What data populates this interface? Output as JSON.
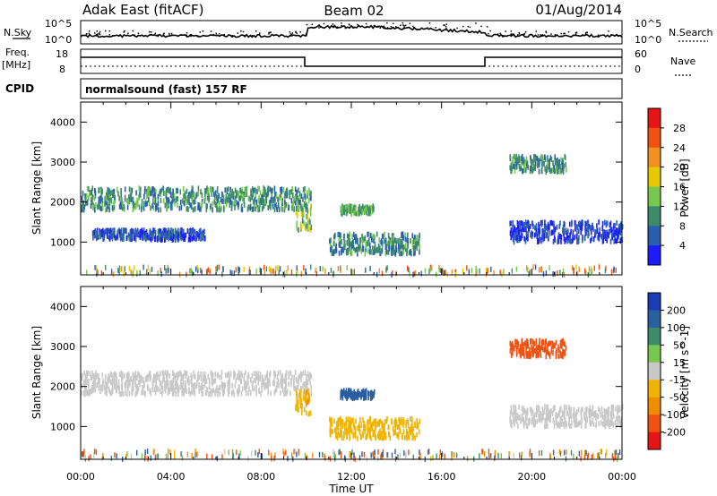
{
  "header": {
    "station": "Adak East (fitACF)",
    "beam": "Beam 02",
    "date": "01/Aug/2014"
  },
  "summary_panels": {
    "nsky": {
      "label": "N.Sky",
      "ticks": [
        "10^5",
        "10^0"
      ]
    },
    "nsearch": {
      "label": "N.Search",
      "ticks": [
        "10^5",
        "10^0"
      ]
    },
    "freq": {
      "label_line1": "Freq.",
      "label_line2": "[MHz]",
      "ticks": [
        "18",
        "8"
      ]
    },
    "nave": {
      "label": "Nave",
      "ticks": [
        "60",
        "0"
      ]
    },
    "cpid": {
      "label": "CPID",
      "text": "normalsound (fast) 157 RF"
    }
  },
  "chart_data": [
    {
      "type": "heatmap",
      "title": "",
      "panel": "power",
      "xlabel": "",
      "ylabel": "Slant Range [km]",
      "colorbar_label": "Power [dB]",
      "x_range": [
        0,
        24
      ],
      "y_range": [
        180,
        4500
      ],
      "x_ticks": [
        "00:00",
        "04:00",
        "08:00",
        "12:00",
        "16:00",
        "20:00",
        "00:00"
      ],
      "y_ticks": [
        "1000",
        "2000",
        "3000",
        "4000"
      ],
      "colorbar_ticks": [
        "4",
        "8",
        "12",
        "16",
        "20",
        "24",
        "28"
      ],
      "colorbar_colors": [
        "#1c1cff",
        "#2a5fb0",
        "#3c8a6a",
        "#78c850",
        "#e6c800",
        "#f09020",
        "#f05010",
        "#e61414"
      ],
      "features": [
        {
          "t_start": 0.0,
          "t_end": 10.2,
          "range_km": [
            1800,
            2350
          ],
          "power_db": 10
        },
        {
          "t_start": 9.5,
          "t_end": 10.2,
          "range_km": [
            1300,
            1900
          ],
          "power_db": 14
        },
        {
          "t_start": 0.5,
          "t_end": 5.5,
          "range_km": [
            1050,
            1300
          ],
          "power_db": 5
        },
        {
          "t_start": 11.0,
          "t_end": 15.0,
          "range_km": [
            700,
            1200
          ],
          "power_db": 9
        },
        {
          "t_start": 11.5,
          "t_end": 13.0,
          "range_km": [
            1700,
            1900
          ],
          "power_db": 12
        },
        {
          "t_start": 19.0,
          "t_end": 21.5,
          "range_km": [
            2750,
            3150
          ],
          "power_db": 9
        },
        {
          "t_start": 19.0,
          "t_end": 24.0,
          "range_km": [
            1000,
            1500
          ],
          "power_db": 4
        }
      ]
    },
    {
      "type": "heatmap",
      "title": "",
      "panel": "velocity",
      "xlabel": "Time UT",
      "ylabel": "Slant Range [km]",
      "colorbar_label": "Velocity [m s^-1]",
      "x_range": [
        0,
        24
      ],
      "y_range": [
        180,
        4500
      ],
      "x_ticks": [
        "00:00",
        "04:00",
        "08:00",
        "12:00",
        "16:00",
        "20:00",
        "00:00"
      ],
      "y_ticks": [
        "1000",
        "2000",
        "3000",
        "4000"
      ],
      "colorbar_ticks": [
        "200",
        "100",
        "50",
        "15",
        "-15",
        "-50",
        "-100",
        "-200"
      ],
      "colorbar_colors": [
        "#1c3cb4",
        "#2a5fa0",
        "#3c8a6a",
        "#78c850",
        "#c8c8c8",
        "#f0b400",
        "#f08c00",
        "#f05010",
        "#e61414"
      ],
      "features": [
        {
          "t_start": 0.0,
          "t_end": 10.2,
          "range_km": [
            1800,
            2350
          ],
          "velocity": 0
        },
        {
          "t_start": 9.5,
          "t_end": 10.2,
          "range_km": [
            1300,
            1900
          ],
          "velocity": -40
        },
        {
          "t_start": 11.0,
          "t_end": 15.0,
          "range_km": [
            700,
            1200
          ],
          "velocity": -30
        },
        {
          "t_start": 11.5,
          "t_end": 13.0,
          "range_km": [
            1700,
            1900
          ],
          "velocity": 120
        },
        {
          "t_start": 19.0,
          "t_end": 21.5,
          "range_km": [
            2750,
            3150
          ],
          "velocity": -180
        },
        {
          "t_start": 19.0,
          "t_end": 24.0,
          "range_km": [
            1000,
            1500
          ],
          "velocity": 0
        }
      ]
    }
  ]
}
